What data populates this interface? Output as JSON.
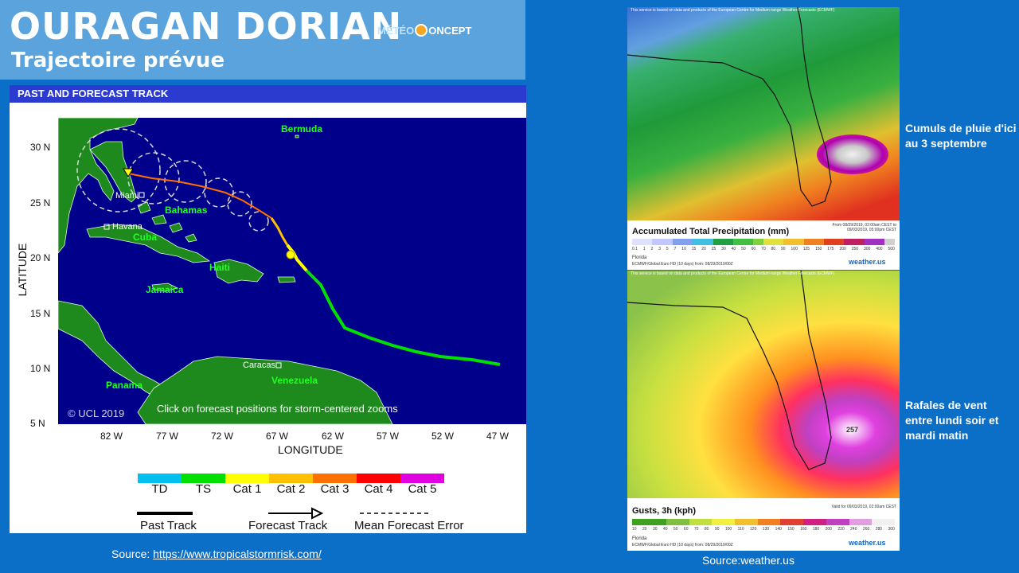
{
  "header": {
    "title": "OURAGAN DORIAN",
    "subtitle": "Trajectoire prévue",
    "logo_text_left": "MÉTÉO",
    "logo_text_right": "ONCEPT"
  },
  "track_panel": {
    "header": "PAST AND FORECAST TRACK",
    "places": {
      "bermuda": "Bermuda",
      "miami": "Miami",
      "bahamas": "Bahamas",
      "havana": "Havana",
      "cuba": "Cuba",
      "haiti": "Haiti",
      "jamaica": "Jamaica",
      "panama": "Panama",
      "caracas": "Caracas",
      "venezuela": "Venezuela"
    },
    "copyright": "© UCL 2019",
    "click_note": "Click on forecast positions for storm-centered zooms",
    "lat_ticks": [
      "30 N",
      "25 N",
      "20 N",
      "15 N",
      "10 N",
      "5 N"
    ],
    "lon_ticks": [
      "82 W",
      "77 W",
      "72 W",
      "67 W",
      "62 W",
      "57 W",
      "52 W",
      "47 W"
    ],
    "ylabel": "LATITUDE",
    "xlabel": "LONGITUDE",
    "legend": {
      "categories": [
        {
          "label": "TD",
          "color": "#00c0f0"
        },
        {
          "label": "TS",
          "color": "#00e000"
        },
        {
          "label": "Cat 1",
          "color": "#ffff00"
        },
        {
          "label": "Cat 2",
          "color": "#ffc000"
        },
        {
          "label": "Cat 3",
          "color": "#ff7000"
        },
        {
          "label": "Cat 4",
          "color": "#ff0000"
        },
        {
          "label": "Cat 5",
          "color": "#e000e0"
        }
      ],
      "past_track": "Past Track",
      "forecast_track": "Forecast Track",
      "mean_error": "Mean Forecast Error"
    }
  },
  "source_left": {
    "label": "Source:",
    "url": "https://www.tropicalstormrisk.com/"
  },
  "rain_map": {
    "disclaimer": "This service is based on data and products of the European Centre for Medium-range Weather Forecasts (ECMWF)",
    "title": "Accumulated Total Precipitation (mm)",
    "valid": "From 08/29/2019, 02:00am CEST to 09/03/2019, 05:00pm CEST",
    "scale": [
      "0.1",
      "1",
      "2",
      "3",
      "5",
      "7",
      "10",
      "15",
      "20",
      "25",
      "30",
      "40",
      "50",
      "60",
      "70",
      "80",
      "90",
      "100",
      "125",
      "150",
      "175",
      "200",
      "250",
      "300",
      "400",
      "500"
    ],
    "region": "Florida",
    "model": "ECMWF/Global Euro HD (10 days) from: 08/29/2019/00Z",
    "brand": "weather.us"
  },
  "gust_map": {
    "disclaimer": "This service is based on data and products of the European Centre for Medium-range Weather Forecasts (ECMWF)",
    "title": "Gusts, 3h (kph)",
    "valid": "Valid for 09/03/2019, 02:00am CEST",
    "scale": [
      "10",
      "20",
      "30",
      "40",
      "50",
      "60",
      "70",
      "80",
      "90",
      "100",
      "110",
      "120",
      "130",
      "140",
      "150",
      "160",
      "180",
      "200",
      "220",
      "240",
      "260",
      "280",
      "300"
    ],
    "region": "Florida",
    "model": "ECMWF/Global Euro HD (10 days) from: 08/29/2019/00Z",
    "brand": "weather.us",
    "peak": "257"
  },
  "captions": {
    "rain": "Cumuls de pluie d'ici au 3 septembre",
    "wind": "Rafales de vent entre lundi soir et mardi matin"
  },
  "source_right": "Source:weather.us",
  "colors": {
    "background": "#0b6fc7",
    "title_box": "#5aa3dd",
    "track_header": "#2b3bd0",
    "ocean": "#00008a",
    "land": "#1e8a1e"
  }
}
